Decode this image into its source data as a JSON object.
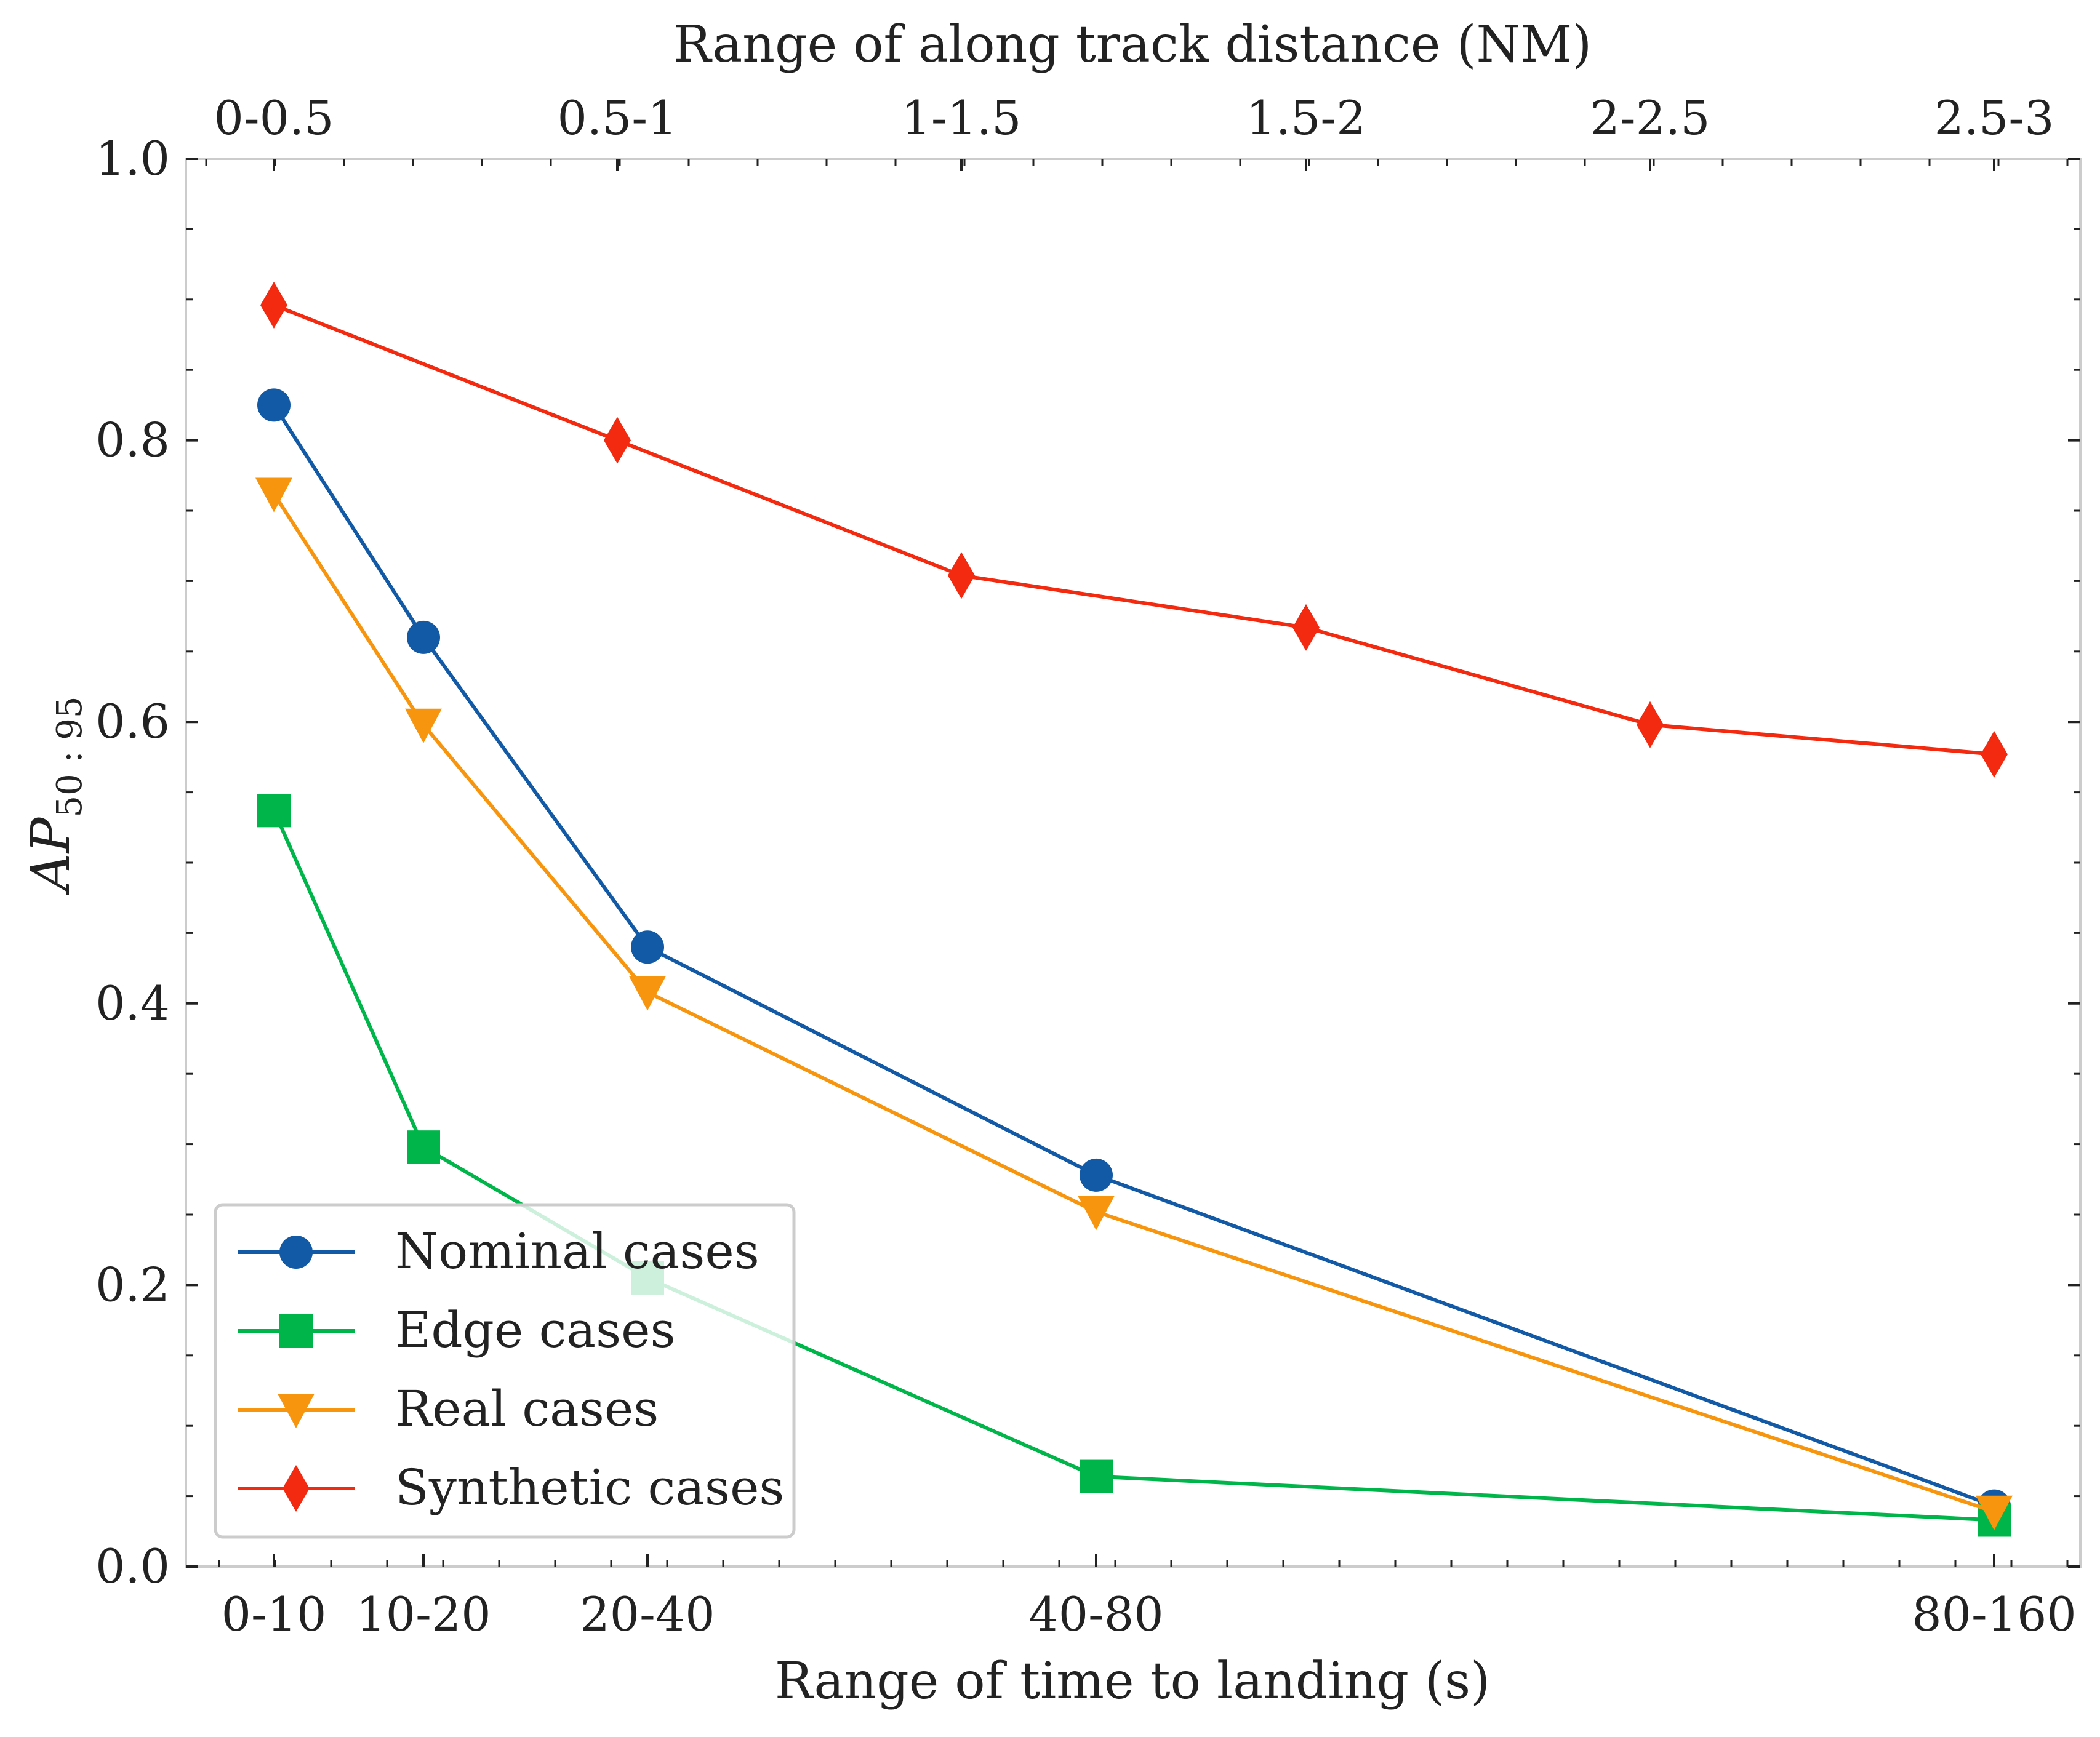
{
  "chart_data": {
    "type": "line",
    "xlabel": "Range of time to landing (s)",
    "x2label": "Range of along track distance (NM)",
    "ylabel": {
      "main": "AP",
      "sub": "50 : 95"
    },
    "ylim": [
      0.0,
      1.0
    ],
    "yticks": [
      "0.0",
      "0.2",
      "0.4",
      "0.6",
      "0.8",
      "1.0"
    ],
    "x_ticks_bottom": [
      "0-10",
      "10-20",
      "20-40",
      "40-80",
      "80-160"
    ],
    "x_ticks_top": [
      "0-0.5",
      "0.5-1",
      "1-1.5",
      "1.5-2",
      "2-2.5",
      "2.5-3"
    ],
    "grid": false,
    "legend_position": "lower-left",
    "series": [
      {
        "name": "Nominal cases",
        "color": "#1259a6",
        "marker": "circle",
        "axis": "bottom",
        "x": [
          "0-10",
          "10-20",
          "20-40",
          "40-80",
          "80-160"
        ],
        "values": [
          0.825,
          0.66,
          0.44,
          0.278,
          0.043
        ]
      },
      {
        "name": "Edge cases",
        "color": "#00b64a",
        "marker": "square",
        "axis": "bottom",
        "x": [
          "0-10",
          "10-20",
          "20-40",
          "40-80",
          "80-160"
        ],
        "values": [
          0.537,
          0.298,
          0.205,
          0.064,
          0.033
        ]
      },
      {
        "name": "Real cases",
        "color": "#f7950f",
        "marker": "triangle-down",
        "axis": "bottom",
        "x": [
          "0-10",
          "10-20",
          "20-40",
          "40-80",
          "80-160"
        ],
        "values": [
          0.762,
          0.598,
          0.408,
          0.252,
          0.039
        ]
      },
      {
        "name": "Synthetic cases",
        "color": "#f42a10",
        "marker": "diamond",
        "axis": "top",
        "x": [
          "0-0.5",
          "0.5-1",
          "1-1.5",
          "1.5-2",
          "2-2.5",
          "2.5-3"
        ],
        "values": [
          0.896,
          0.8,
          0.704,
          0.667,
          0.598,
          0.577
        ]
      }
    ]
  }
}
